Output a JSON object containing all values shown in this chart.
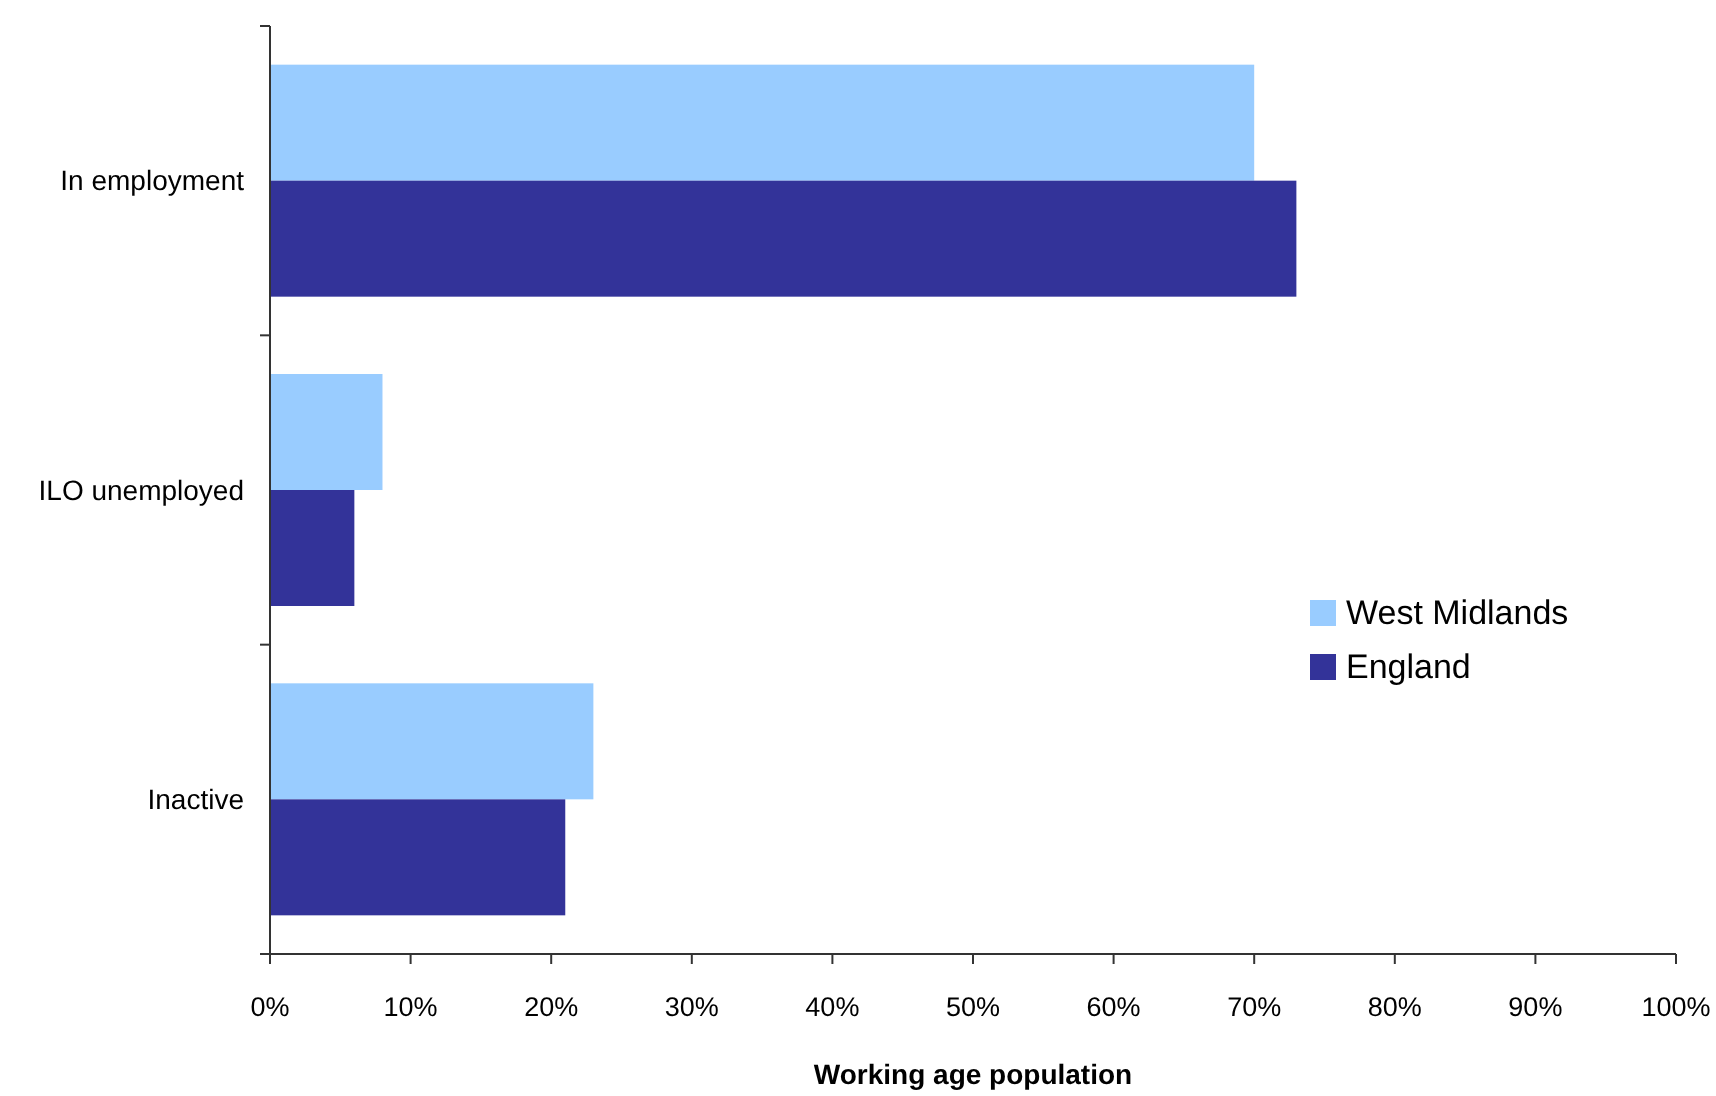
{
  "chart_data": {
    "type": "bar",
    "orientation": "horizontal",
    "xlabel": "Working age population",
    "categories": [
      "In employment",
      "ILO unemployed",
      "Inactive"
    ],
    "series": [
      {
        "name": "West Midlands",
        "color": "#99ccff",
        "values": [
          70,
          8,
          23
        ]
      },
      {
        "name": "England",
        "color": "#333399",
        "values": [
          73,
          6,
          21
        ]
      }
    ],
    "xlim": [
      0,
      100
    ],
    "xticks": [
      {
        "value": 0,
        "label": "0%"
      },
      {
        "value": 10,
        "label": "10%"
      },
      {
        "value": 20,
        "label": "20%"
      },
      {
        "value": 30,
        "label": "30%"
      },
      {
        "value": 40,
        "label": "40%"
      },
      {
        "value": 50,
        "label": "50%"
      },
      {
        "value": 60,
        "label": "60%"
      },
      {
        "value": 70,
        "label": "70%"
      },
      {
        "value": 80,
        "label": "80%"
      },
      {
        "value": 90,
        "label": "90%"
      },
      {
        "value": 100,
        "label": "100%"
      }
    ],
    "legend": "right"
  }
}
